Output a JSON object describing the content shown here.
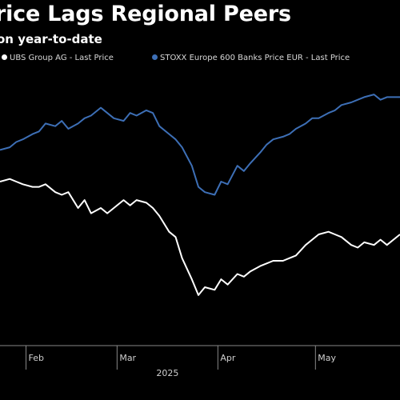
{
  "title": "rice Lags Regional Peers",
  "subtitle": "on year-to-date",
  "chart_data": {
    "type": "line",
    "title": "rice Lags Regional Peers",
    "subtitle": "on year-to-date",
    "year_label": "2025",
    "x_ticks": [
      "Feb",
      "Mar",
      "Apr",
      "May"
    ],
    "x_tick_dates": [
      "2025-02-01",
      "2025-03-01",
      "2025-04-01",
      "2025-05-01"
    ],
    "xlim": [
      "2025-01-24",
      "2025-05-27"
    ],
    "ylim": [
      0,
      100
    ],
    "y_axis_labels_visible": false,
    "grid": false,
    "legend_position": "top",
    "series": [
      {
        "name": "UBS Group AG - Last Price",
        "color": "#ffffff",
        "x": [
          "2025-01-24",
          "2025-01-27",
          "2025-01-29",
          "2025-01-31",
          "2025-02-03",
          "2025-02-05",
          "2025-02-07",
          "2025-02-10",
          "2025-02-12",
          "2025-02-14",
          "2025-02-17",
          "2025-02-19",
          "2025-02-21",
          "2025-02-24",
          "2025-02-26",
          "2025-02-28",
          "2025-03-03",
          "2025-03-05",
          "2025-03-07",
          "2025-03-10",
          "2025-03-12",
          "2025-03-14",
          "2025-03-17",
          "2025-03-19",
          "2025-03-21",
          "2025-03-24",
          "2025-03-26",
          "2025-03-28",
          "2025-03-31",
          "2025-04-02",
          "2025-04-04",
          "2025-04-07",
          "2025-04-09",
          "2025-04-11",
          "2025-04-14",
          "2025-04-16",
          "2025-04-18",
          "2025-04-21",
          "2025-04-23",
          "2025-04-25",
          "2025-04-28",
          "2025-04-30",
          "2025-05-02",
          "2025-05-05",
          "2025-05-07",
          "2025-05-09",
          "2025-05-12",
          "2025-05-14",
          "2025-05-16",
          "2025-05-19",
          "2025-05-21",
          "2025-05-23",
          "2025-05-27"
        ],
        "values": [
          60,
          61,
          60,
          59,
          58,
          58,
          59,
          56,
          55,
          56,
          50,
          53,
          48,
          50,
          48,
          50,
          53,
          51,
          53,
          52,
          50,
          47,
          41,
          39,
          31,
          23,
          17,
          20,
          19,
          23,
          21,
          25,
          24,
          26,
          28,
          29,
          30,
          30,
          31,
          32,
          36,
          38,
          40,
          41,
          40,
          39,
          36,
          35,
          37,
          36,
          38,
          36,
          40
        ]
      },
      {
        "name": "STOXX Europe 600 Banks Price EUR - Last Price",
        "color": "#3d6fb6",
        "x": [
          "2025-01-24",
          "2025-01-27",
          "2025-01-29",
          "2025-01-31",
          "2025-02-03",
          "2025-02-05",
          "2025-02-07",
          "2025-02-10",
          "2025-02-12",
          "2025-02-14",
          "2025-02-17",
          "2025-02-19",
          "2025-02-21",
          "2025-02-24",
          "2025-02-26",
          "2025-02-28",
          "2025-03-03",
          "2025-03-05",
          "2025-03-07",
          "2025-03-10",
          "2025-03-12",
          "2025-03-14",
          "2025-03-17",
          "2025-03-19",
          "2025-03-21",
          "2025-03-24",
          "2025-03-26",
          "2025-03-28",
          "2025-03-31",
          "2025-04-02",
          "2025-04-04",
          "2025-04-07",
          "2025-04-09",
          "2025-04-11",
          "2025-04-14",
          "2025-04-16",
          "2025-04-18",
          "2025-04-21",
          "2025-04-23",
          "2025-04-25",
          "2025-04-28",
          "2025-04-30",
          "2025-05-02",
          "2025-05-05",
          "2025-05-07",
          "2025-05-09",
          "2025-05-12",
          "2025-05-14",
          "2025-05-16",
          "2025-05-19",
          "2025-05-21",
          "2025-05-23",
          "2025-05-27"
        ],
        "values": [
          72,
          73,
          75,
          76,
          78,
          79,
          82,
          81,
          83,
          80,
          82,
          84,
          85,
          88,
          86,
          84,
          83,
          86,
          85,
          87,
          86,
          81,
          78,
          76,
          73,
          66,
          58,
          56,
          55,
          60,
          59,
          66,
          64,
          67,
          71,
          74,
          76,
          77,
          78,
          80,
          82,
          84,
          84,
          86,
          87,
          89,
          90,
          91,
          92,
          93,
          91,
          92,
          92
        ]
      }
    ]
  }
}
